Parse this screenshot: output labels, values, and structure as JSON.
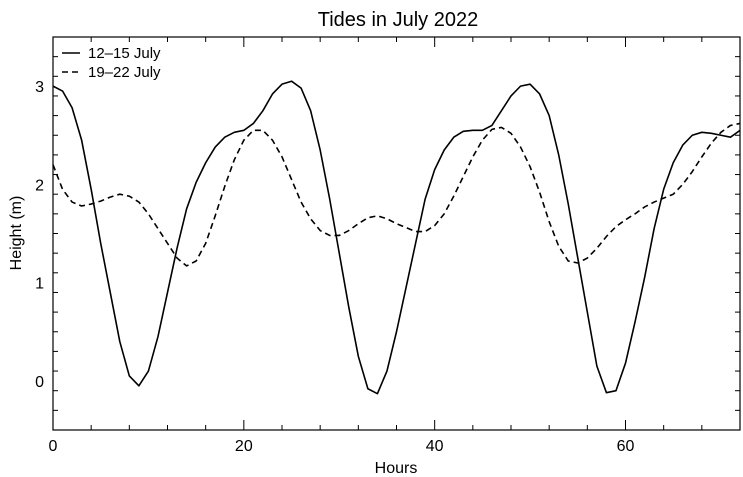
{
  "chart_data": {
    "type": "line",
    "title": "Tides in July 2022",
    "xlabel": "Hours",
    "ylabel": "Height (m)",
    "xlim": [
      0,
      72
    ],
    "ylim": [
      -0.5,
      3.5
    ],
    "x_ticks": [
      0,
      20,
      40,
      60
    ],
    "x_tick_labels": [
      "0",
      "20",
      "40",
      "60"
    ],
    "x_minor_step": 4,
    "y_ticks": [
      0,
      1,
      2,
      3
    ],
    "y_tick_labels": [
      "0",
      "1",
      "2",
      "3"
    ],
    "y_minor_step": 0.2,
    "grid": false,
    "legend": "top-left",
    "series": [
      {
        "name": "12–15 July",
        "style": "solid",
        "x": [
          0,
          1,
          2,
          3,
          4,
          5,
          6,
          7,
          8,
          9,
          10,
          11,
          12,
          13,
          14,
          15,
          16,
          17,
          18,
          19,
          20,
          21,
          22,
          23,
          24,
          25,
          26,
          27,
          28,
          29,
          30,
          31,
          32,
          33,
          34,
          35,
          36,
          37,
          38,
          39,
          40,
          41,
          42,
          43,
          44,
          45,
          46,
          47,
          48,
          49,
          50,
          51,
          52,
          53,
          54,
          55,
          56,
          57,
          58,
          59,
          60,
          61,
          62,
          63,
          64,
          65,
          66,
          67,
          68,
          69,
          70,
          71,
          72
        ],
        "values": [
          3.0,
          2.95,
          2.78,
          2.45,
          1.95,
          1.4,
          0.9,
          0.4,
          0.05,
          -0.05,
          0.1,
          0.45,
          0.9,
          1.35,
          1.75,
          2.02,
          2.22,
          2.38,
          2.48,
          2.53,
          2.55,
          2.62,
          2.75,
          2.92,
          3.02,
          3.05,
          2.98,
          2.75,
          2.35,
          1.85,
          1.3,
          0.75,
          0.25,
          -0.08,
          -0.13,
          0.1,
          0.5,
          0.95,
          1.4,
          1.85,
          2.15,
          2.35,
          2.48,
          2.54,
          2.55,
          2.55,
          2.6,
          2.75,
          2.9,
          3.0,
          3.02,
          2.92,
          2.7,
          2.3,
          1.8,
          1.25,
          0.7,
          0.15,
          -0.12,
          -0.1,
          0.18,
          0.6,
          1.05,
          1.55,
          1.95,
          2.22,
          2.4,
          2.5,
          2.53,
          2.52,
          2.5,
          2.48,
          2.55
        ]
      },
      {
        "name": "19–22 July",
        "style": "dashed",
        "x": [
          0,
          1,
          2,
          3,
          4,
          5,
          6,
          7,
          8,
          9,
          10,
          11,
          12,
          13,
          14,
          15,
          16,
          17,
          18,
          19,
          20,
          21,
          22,
          23,
          24,
          25,
          26,
          27,
          28,
          29,
          30,
          31,
          32,
          33,
          34,
          35,
          36,
          37,
          38,
          39,
          40,
          41,
          42,
          43,
          44,
          45,
          46,
          47,
          48,
          49,
          50,
          51,
          52,
          53,
          54,
          55,
          56,
          57,
          58,
          59,
          60,
          61,
          62,
          63,
          64,
          65,
          66,
          67,
          68,
          69,
          70,
          71,
          72
        ],
        "values": [
          2.2,
          1.95,
          1.82,
          1.78,
          1.8,
          1.83,
          1.87,
          1.9,
          1.88,
          1.82,
          1.7,
          1.55,
          1.4,
          1.25,
          1.17,
          1.22,
          1.4,
          1.68,
          1.98,
          2.25,
          2.45,
          2.55,
          2.55,
          2.45,
          2.28,
          2.05,
          1.82,
          1.65,
          1.53,
          1.48,
          1.48,
          1.53,
          1.6,
          1.66,
          1.68,
          1.65,
          1.6,
          1.56,
          1.52,
          1.52,
          1.58,
          1.7,
          1.88,
          2.08,
          2.28,
          2.45,
          2.56,
          2.58,
          2.52,
          2.38,
          2.18,
          1.92,
          1.62,
          1.37,
          1.22,
          1.2,
          1.25,
          1.35,
          1.47,
          1.57,
          1.64,
          1.7,
          1.77,
          1.82,
          1.86,
          1.9,
          2.0,
          2.13,
          2.28,
          2.42,
          2.53,
          2.6,
          2.62
        ]
      }
    ]
  }
}
